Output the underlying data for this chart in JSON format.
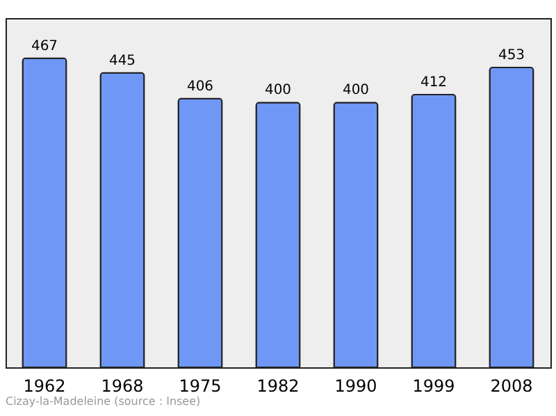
{
  "chart_data": {
    "type": "bar",
    "categories": [
      "1962",
      "1968",
      "1975",
      "1982",
      "1990",
      "1999",
      "2008"
    ],
    "values": [
      467,
      445,
      406,
      400,
      400,
      412,
      453
    ],
    "color": "#6f97f5",
    "data_labels": true,
    "grid": false,
    "tick_labels": "x",
    "annotations": [
      "Cizay-la-Madeleine    (source : Insee)"
    ]
  }
}
